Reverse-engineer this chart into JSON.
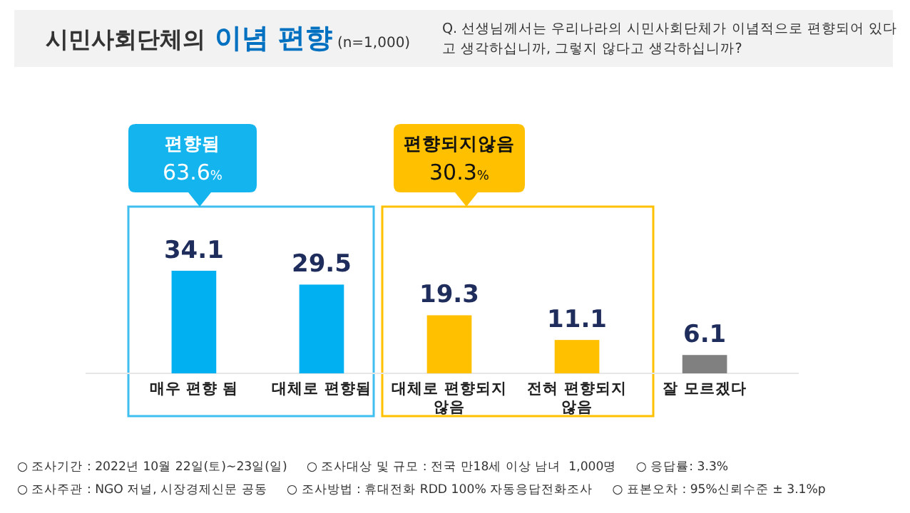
{
  "chart_data": {
    "type": "bar",
    "title": "시민사회단체의 이념 편향",
    "subtitle": "(n=1,000)",
    "categories": [
      "매우 편향 됨",
      "대체로 편향됨",
      "대체로 편향되지 않음",
      "전혀 편향되지 않음",
      "잘 모르겠다"
    ],
    "values": [
      34.1,
      29.5,
      19.3,
      11.1,
      6.1
    ],
    "colors": [
      "#00b0f0",
      "#00b0f0",
      "#ffc000",
      "#ffc000",
      "#808080"
    ],
    "data_labels": true,
    "annotations": [
      "Q. 선생님께서는 우리나라의 시민사회단체가 이념적으로 편향되어 있다 고 생각하십니까, 그렇지 않다고 생각하십니까?",
      "편향됨 63.6%",
      "편향되지않음 30.3%",
      "○ 조사기간 : 2022년 10월 22일(토)~23일(일)     ○ 조사대상 및 규모 : 전국 만18세 이상 남녀  1,000명     ○ 응답률: 3.3%",
      "○ 조사주관 : NGO 저널, 시장경제신문 공동     ○ 조사방법 : 휴대전화 RDD 100% 자동응답전화조사     ○ 표본오차 : 95%신뢰수준 ± 3.1%p"
    ]
  }
}
